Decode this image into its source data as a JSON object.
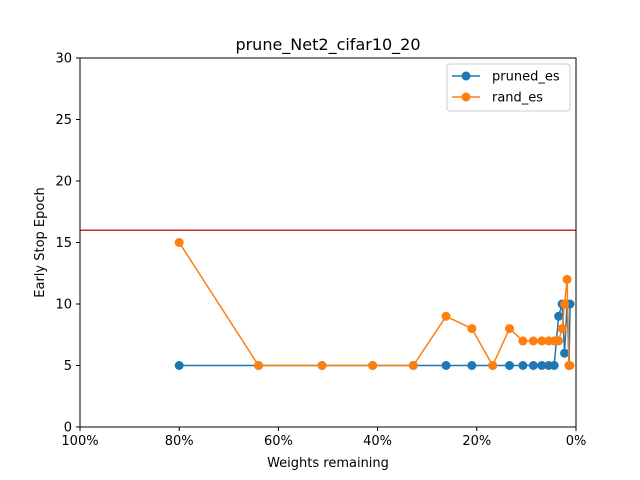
{
  "chart_data": {
    "type": "line",
    "title": "prune_Net2_cifar10_20",
    "xlabel": "Weights remaining",
    "ylabel": "Early Stop Epoch",
    "xlim": [
      100,
      0
    ],
    "ylim": [
      0,
      30
    ],
    "x_ticks": [
      100,
      80,
      60,
      40,
      20,
      0
    ],
    "x_tick_labels": [
      "100%",
      "80%",
      "60%",
      "40%",
      "20%",
      "0%"
    ],
    "y_ticks": [
      0,
      5,
      10,
      15,
      20,
      25,
      30
    ],
    "y_tick_labels": [
      "0",
      "5",
      "10",
      "15",
      "20",
      "25",
      "30"
    ],
    "reference_line": {
      "y": 16,
      "color": "#d62728"
    },
    "legend_position": "top-right",
    "grid": false,
    "series": [
      {
        "name": "pruned_es",
        "color": "#1f77b4",
        "x": [
          80,
          64,
          51.2,
          41,
          32.8,
          26.2,
          21,
          16.8,
          13.4,
          10.7,
          8.6,
          6.9,
          5.5,
          4.4,
          3.5,
          2.8,
          2.3,
          1.8,
          1.4,
          1.2
        ],
        "y": [
          5,
          5,
          5,
          5,
          5,
          5,
          5,
          5,
          5,
          5,
          5,
          5,
          5,
          5,
          9,
          10,
          6,
          10,
          5,
          10
        ]
      },
      {
        "name": "rand_es",
        "color": "#ff7f0e",
        "x": [
          80,
          64,
          51.2,
          41,
          32.8,
          26.2,
          21,
          16.8,
          13.4,
          10.7,
          8.6,
          6.9,
          5.5,
          4.4,
          3.5,
          2.8,
          2.3,
          1.8,
          1.4,
          1.2
        ],
        "y": [
          15,
          5,
          5,
          5,
          5,
          9,
          8,
          5,
          8,
          7,
          7,
          7,
          7,
          7,
          7,
          8,
          10,
          12,
          5,
          5
        ]
      }
    ]
  }
}
